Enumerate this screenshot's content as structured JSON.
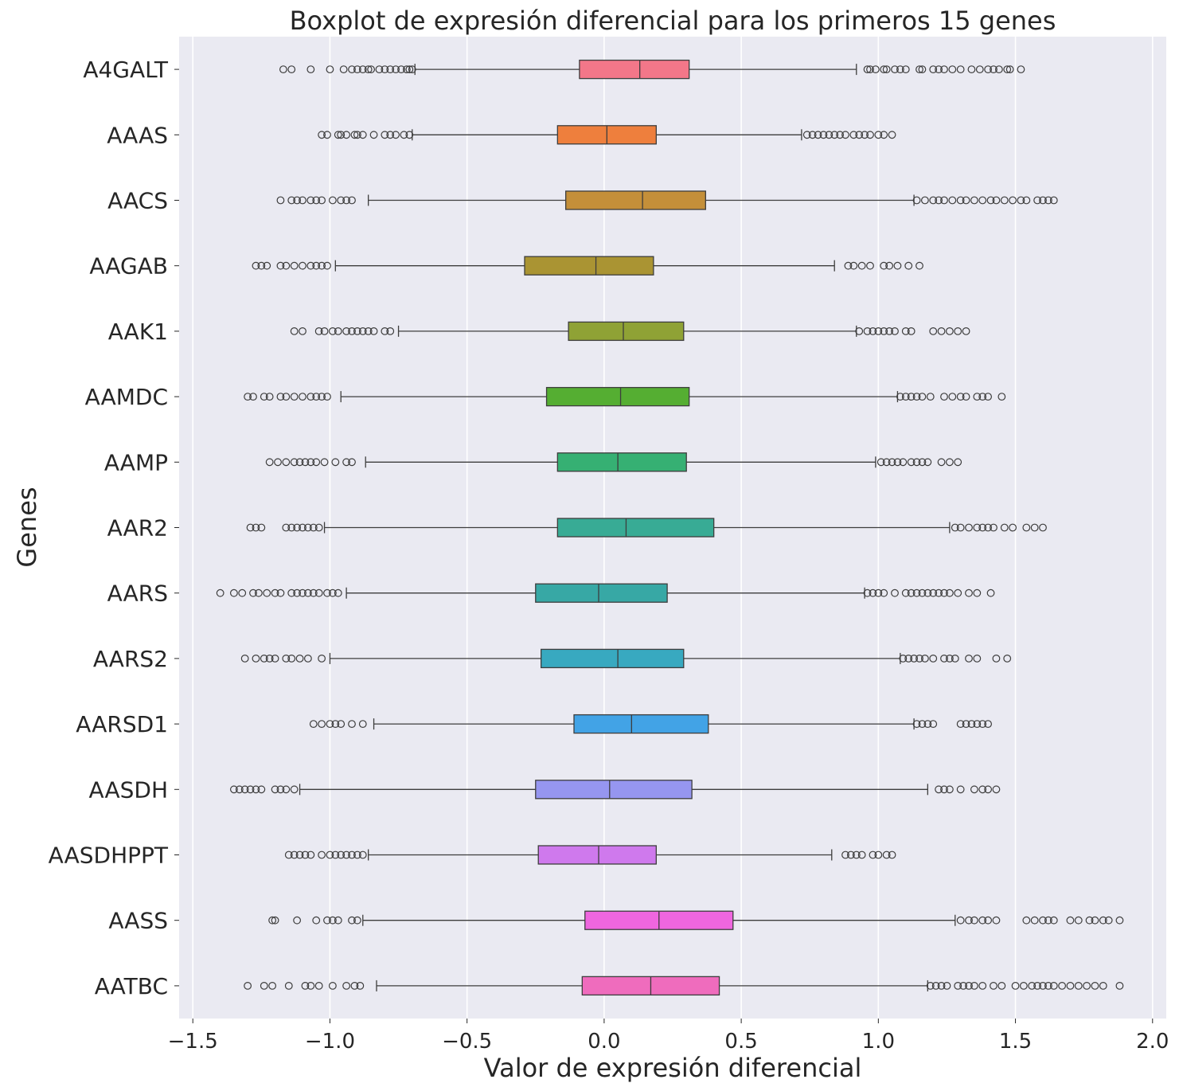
{
  "chart_data": {
    "type": "boxplot",
    "orientation": "horizontal",
    "title": "Boxplot de expresión diferencial para los primeros 15 genes",
    "xlabel": "Valor de expresión diferencial",
    "ylabel": "Genes",
    "xlim": [
      -1.55,
      2.05
    ],
    "xticks": [
      -1.5,
      -1.0,
      -0.5,
      0.0,
      0.5,
      1.0,
      1.5,
      2.0
    ],
    "xtick_labels": [
      "−1.5",
      "−1.0",
      "−0.5",
      "0.0",
      "0.5",
      "1.0",
      "1.5",
      "2.0"
    ],
    "grid": true,
    "categories": [
      "A4GALT",
      "AAAS",
      "AACS",
      "AAGAB",
      "AAK1",
      "AAMDC",
      "AAMP",
      "AAR2",
      "AARS",
      "AARS2",
      "AARSD1",
      "AASDH",
      "AASDHPPT",
      "AASS",
      "AATBC"
    ],
    "colors": [
      "#f37789",
      "#ee7f3d",
      "#c48f39",
      "#aa9433",
      "#8fa235",
      "#55ae32",
      "#36b073",
      "#38ab95",
      "#37a8a5",
      "#38a9c0",
      "#42a3e6",
      "#9696f0",
      "#cf79ed",
      "#ef66df",
      "#ef6cbd"
    ],
    "boxes": [
      {
        "q1": -0.09,
        "median": 0.13,
        "q3": 0.31,
        "whislo": -0.69,
        "whishi": 0.92,
        "fliers": [
          -1.17,
          -1.14,
          -1.07,
          -1.0,
          -0.95,
          -0.92,
          -0.9,
          -0.88,
          -0.86,
          -0.85,
          -0.82,
          -0.8,
          -0.78,
          -0.76,
          -0.74,
          -0.72,
          -0.71,
          -0.7,
          0.96,
          0.97,
          0.99,
          1.02,
          1.03,
          1.06,
          1.08,
          1.1,
          1.15,
          1.16,
          1.2,
          1.22,
          1.24,
          1.27,
          1.3,
          1.34,
          1.37,
          1.4,
          1.42,
          1.44,
          1.47,
          1.48,
          1.52
        ]
      },
      {
        "q1": -0.17,
        "median": 0.01,
        "q3": 0.19,
        "whislo": -0.7,
        "whishi": 0.72,
        "fliers": [
          -1.03,
          -1.01,
          -0.97,
          -0.96,
          -0.94,
          -0.91,
          -0.9,
          -0.88,
          -0.84,
          -0.8,
          -0.78,
          -0.76,
          -0.73,
          -0.71,
          0.74,
          0.76,
          0.78,
          0.8,
          0.82,
          0.84,
          0.86,
          0.88,
          0.91,
          0.93,
          0.95,
          0.97,
          1.0,
          1.02,
          1.05
        ]
      },
      {
        "q1": -0.14,
        "median": 0.14,
        "q3": 0.37,
        "whislo": -0.86,
        "whishi": 1.13,
        "fliers": [
          -1.18,
          -1.14,
          -1.12,
          -1.1,
          -1.07,
          -1.05,
          -1.03,
          -0.99,
          -0.96,
          -0.94,
          -0.92,
          1.14,
          1.17,
          1.2,
          1.22,
          1.24,
          1.27,
          1.3,
          1.32,
          1.35,
          1.38,
          1.41,
          1.43,
          1.46,
          1.49,
          1.52,
          1.54,
          1.58,
          1.6,
          1.62,
          1.64
        ]
      },
      {
        "q1": -0.29,
        "median": -0.03,
        "q3": 0.18,
        "whislo": -0.98,
        "whishi": 0.84,
        "fliers": [
          -1.27,
          -1.25,
          -1.23,
          -1.18,
          -1.16,
          -1.13,
          -1.1,
          -1.07,
          -1.05,
          -1.03,
          -1.01,
          0.89,
          0.91,
          0.94,
          0.97,
          1.02,
          1.04,
          1.07,
          1.11,
          1.15
        ]
      },
      {
        "q1": -0.13,
        "median": 0.07,
        "q3": 0.29,
        "whislo": -0.75,
        "whishi": 0.92,
        "fliers": [
          -1.13,
          -1.1,
          -1.04,
          -1.02,
          -0.99,
          -0.97,
          -0.94,
          -0.92,
          -0.9,
          -0.88,
          -0.86,
          -0.84,
          -0.8,
          -0.78,
          0.93,
          0.96,
          0.98,
          1.0,
          1.02,
          1.04,
          1.06,
          1.1,
          1.12,
          1.2,
          1.23,
          1.26,
          1.29,
          1.32
        ]
      },
      {
        "q1": -0.21,
        "median": 0.06,
        "q3": 0.31,
        "whislo": -0.96,
        "whishi": 1.07,
        "fliers": [
          -1.3,
          -1.28,
          -1.24,
          -1.22,
          -1.18,
          -1.16,
          -1.13,
          -1.1,
          -1.07,
          -1.05,
          -1.03,
          -1.01,
          1.08,
          1.1,
          1.12,
          1.14,
          1.16,
          1.19,
          1.24,
          1.27,
          1.3,
          1.32,
          1.36,
          1.38,
          1.4,
          1.45
        ]
      },
      {
        "q1": -0.17,
        "median": 0.05,
        "q3": 0.3,
        "whislo": -0.87,
        "whishi": 0.99,
        "fliers": [
          -1.22,
          -1.19,
          -1.16,
          -1.13,
          -1.11,
          -1.09,
          -1.07,
          -1.05,
          -1.02,
          -0.98,
          -0.94,
          -0.92,
          1.01,
          1.03,
          1.05,
          1.07,
          1.09,
          1.12,
          1.14,
          1.16,
          1.18,
          1.23,
          1.26,
          1.29
        ]
      },
      {
        "q1": -0.17,
        "median": 0.08,
        "q3": 0.4,
        "whislo": -1.02,
        "whishi": 1.26,
        "fliers": [
          -1.29,
          -1.27,
          -1.25,
          -1.16,
          -1.14,
          -1.12,
          -1.1,
          -1.08,
          -1.06,
          -1.04,
          1.28,
          1.3,
          1.33,
          1.36,
          1.38,
          1.4,
          1.42,
          1.46,
          1.49,
          1.54,
          1.57,
          1.6
        ]
      },
      {
        "q1": -0.25,
        "median": -0.02,
        "q3": 0.23,
        "whislo": -0.94,
        "whishi": 0.95,
        "fliers": [
          -1.4,
          -1.35,
          -1.32,
          -1.28,
          -1.26,
          -1.23,
          -1.2,
          -1.18,
          -1.14,
          -1.12,
          -1.1,
          -1.08,
          -1.06,
          -1.04,
          -1.01,
          -0.99,
          -0.97,
          0.96,
          0.98,
          1.0,
          1.02,
          1.06,
          1.1,
          1.12,
          1.14,
          1.16,
          1.18,
          1.2,
          1.22,
          1.24,
          1.26,
          1.29,
          1.33,
          1.36,
          1.41
        ]
      },
      {
        "q1": -0.23,
        "median": 0.05,
        "q3": 0.29,
        "whislo": -1.0,
        "whishi": 1.08,
        "fliers": [
          -1.31,
          -1.27,
          -1.24,
          -1.22,
          -1.2,
          -1.16,
          -1.14,
          -1.11,
          -1.08,
          -1.03,
          1.09,
          1.11,
          1.13,
          1.15,
          1.17,
          1.2,
          1.24,
          1.26,
          1.28,
          1.33,
          1.36,
          1.43,
          1.47
        ]
      },
      {
        "q1": -0.11,
        "median": 0.1,
        "q3": 0.38,
        "whislo": -0.84,
        "whishi": 1.13,
        "fliers": [
          -1.06,
          -1.03,
          -1.0,
          -0.98,
          -0.96,
          -0.92,
          -0.88,
          1.14,
          1.16,
          1.18,
          1.2,
          1.3,
          1.32,
          1.34,
          1.36,
          1.38,
          1.4
        ]
      },
      {
        "q1": -0.25,
        "median": 0.02,
        "q3": 0.32,
        "whislo": -1.11,
        "whishi": 1.18,
        "fliers": [
          -1.35,
          -1.33,
          -1.31,
          -1.29,
          -1.27,
          -1.25,
          -1.2,
          -1.18,
          -1.16,
          -1.13,
          1.22,
          1.24,
          1.26,
          1.3,
          1.35,
          1.38,
          1.4,
          1.43
        ]
      },
      {
        "q1": -0.24,
        "median": -0.02,
        "q3": 0.19,
        "whislo": -0.86,
        "whishi": 0.83,
        "fliers": [
          -1.15,
          -1.13,
          -1.11,
          -1.09,
          -1.07,
          -1.03,
          -1.0,
          -0.98,
          -0.96,
          -0.94,
          -0.92,
          -0.9,
          -0.88,
          0.88,
          0.9,
          0.92,
          0.94,
          0.98,
          1.0,
          1.03,
          1.05
        ]
      },
      {
        "q1": -0.07,
        "median": 0.2,
        "q3": 0.47,
        "whislo": -0.88,
        "whishi": 1.28,
        "fliers": [
          -1.21,
          -1.2,
          -1.12,
          -1.05,
          -1.01,
          -0.99,
          -0.97,
          -0.92,
          -0.9,
          1.3,
          1.33,
          1.35,
          1.38,
          1.4,
          1.43,
          1.54,
          1.57,
          1.6,
          1.62,
          1.64,
          1.7,
          1.73,
          1.77,
          1.79,
          1.82,
          1.84,
          1.88
        ]
      },
      {
        "q1": -0.08,
        "median": 0.17,
        "q3": 0.42,
        "whislo": -0.83,
        "whishi": 1.18,
        "fliers": [
          -1.3,
          -1.24,
          -1.21,
          -1.15,
          -1.09,
          -1.07,
          -1.04,
          -0.99,
          -0.94,
          -0.91,
          -0.89,
          1.19,
          1.21,
          1.23,
          1.25,
          1.29,
          1.31,
          1.33,
          1.35,
          1.38,
          1.42,
          1.45,
          1.5,
          1.53,
          1.56,
          1.58,
          1.6,
          1.62,
          1.64,
          1.67,
          1.7,
          1.73,
          1.76,
          1.79,
          1.82,
          1.88
        ]
      }
    ]
  }
}
